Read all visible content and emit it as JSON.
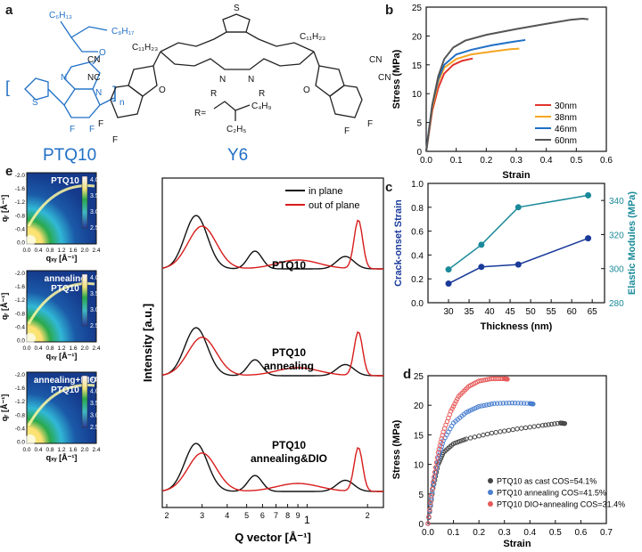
{
  "panel_labels": {
    "a": "a",
    "b": "b",
    "c": "c",
    "d": "d",
    "e": "e"
  },
  "molecules": {
    "ptq10": {
      "name": "PTQ10",
      "atoms": {
        "c6h13": "C₆H₁₃",
        "c8h17": "C₈H₁₇",
        "o": "O",
        "n1": "N",
        "n2": "N",
        "s": "S",
        "f1": "F",
        "f2": "F",
        "n_sub": "n"
      }
    },
    "y6": {
      "name": "Y6",
      "atoms": {
        "c11h23_left": "C₁₁H₂₃",
        "c11h23_right": "C₁₁H₂₃",
        "r_label": "R=",
        "c4h9": "C₄H₉",
        "c2h5": "C₂H₅",
        "n_left": "N",
        "n_right": "N",
        "r_left": "R",
        "r_right": "R",
        "cn": "CN",
        "nc": "NC",
        "o": "O",
        "f": "F",
        "s": "S"
      }
    }
  },
  "colors": {
    "blue": "#1f6fc5",
    "teal": "#1a8a9a",
    "navy": "#1a3a9a",
    "red": "#e0342c",
    "orange": "#f5a623",
    "black": "#111111",
    "gray": "#555555"
  },
  "chart_data": [
    {
      "id": "b",
      "type": "line",
      "xlabel": "Strain",
      "ylabel": "Stress (MPa)",
      "xlim": [
        0.0,
        0.6
      ],
      "ylim": [
        0,
        25
      ],
      "xticks": [
        "0.0",
        "0.1",
        "0.2",
        "0.3",
        "0.4",
        "0.5",
        "0.6"
      ],
      "yticks": [
        "0",
        "5",
        "10",
        "15",
        "20",
        "25"
      ],
      "legend": "bottom-right",
      "series": [
        {
          "name": "30nm",
          "color": "#e0342c",
          "points": [
            [
              0,
              0
            ],
            [
              0.02,
              7
            ],
            [
              0.04,
              11
            ],
            [
              0.06,
              13.5
            ],
            [
              0.09,
              15
            ],
            [
              0.12,
              15.7
            ],
            [
              0.155,
              16.1
            ]
          ]
        },
        {
          "name": "38nm",
          "color": "#f5a623",
          "points": [
            [
              0,
              0
            ],
            [
              0.02,
              7.5
            ],
            [
              0.04,
              12
            ],
            [
              0.06,
              14.5
            ],
            [
              0.1,
              16
            ],
            [
              0.15,
              16.8
            ],
            [
              0.22,
              17.3
            ],
            [
              0.28,
              17.7
            ],
            [
              0.31,
              17.8
            ]
          ]
        },
        {
          "name": "46nm",
          "color": "#1f6fc5",
          "points": [
            [
              0,
              0
            ],
            [
              0.02,
              8
            ],
            [
              0.04,
              12.5
            ],
            [
              0.06,
              15
            ],
            [
              0.1,
              16.8
            ],
            [
              0.15,
              17.6
            ],
            [
              0.22,
              18.4
            ],
            [
              0.29,
              19.0
            ],
            [
              0.33,
              19.3
            ]
          ]
        },
        {
          "name": "60nm",
          "color": "#555555",
          "points": [
            [
              0,
              0
            ],
            [
              0.02,
              8
            ],
            [
              0.04,
              13
            ],
            [
              0.06,
              16
            ],
            [
              0.09,
              18
            ],
            [
              0.13,
              19.2
            ],
            [
              0.2,
              20.2
            ],
            [
              0.3,
              21.2
            ],
            [
              0.4,
              22.1
            ],
            [
              0.48,
              22.8
            ],
            [
              0.52,
              23.0
            ],
            [
              0.54,
              22.9
            ]
          ]
        }
      ]
    },
    {
      "id": "c",
      "type": "line",
      "xlabel": "Thickness (nm)",
      "ylabel_left": "Crack-onset Strain",
      "ylabel_right": "Elastic Modules (MPa)",
      "xlim": [
        25,
        68
      ],
      "ylim_left": [
        0.0,
        1.0
      ],
      "ylim_right": [
        280,
        350
      ],
      "xticks": [
        "30",
        "35",
        "40",
        "45",
        "50",
        "55",
        "60",
        "65"
      ],
      "yticks_left": [
        "0.0",
        "0.2",
        "0.4",
        "0.6",
        "0.8",
        "1.0"
      ],
      "yticks_right": [
        "280",
        "300",
        "320",
        "340"
      ],
      "series": [
        {
          "name": "Crack-onset Strain",
          "axis": "left",
          "color": "#1a3a9a",
          "x": [
            30,
            38,
            47,
            64
          ],
          "y": [
            0.16,
            0.3,
            0.32,
            0.54
          ]
        },
        {
          "name": "Elastic Modules",
          "axis": "right",
          "color": "#1a8a9a",
          "x": [
            30,
            38,
            47,
            64
          ],
          "y": [
            299.5,
            314,
            336,
            343
          ]
        }
      ]
    },
    {
      "id": "d",
      "type": "scatter",
      "xlabel": "Strain",
      "ylabel": "Stress (MPa)",
      "xlim": [
        0.0,
        0.7
      ],
      "ylim": [
        0,
        25
      ],
      "xticks": [
        "0.0",
        "0.1",
        "0.2",
        "0.3",
        "0.4",
        "0.5",
        "0.6",
        "0.7"
      ],
      "yticks": [
        "0",
        "5",
        "10",
        "15",
        "20",
        "25"
      ],
      "legend": "bottom-right",
      "series": [
        {
          "name": "PTQ10 as cast COS=54.1%",
          "color": "#444444",
          "curve": [
            [
              0,
              0
            ],
            [
              0.02,
              6
            ],
            [
              0.04,
              10
            ],
            [
              0.06,
              12
            ],
            [
              0.1,
              13.5
            ],
            [
              0.15,
              14.3
            ],
            [
              0.25,
              15.3
            ],
            [
              0.35,
              16.0
            ],
            [
              0.45,
              16.6
            ],
            [
              0.52,
              17.0
            ],
            [
              0.54,
              16.9
            ]
          ]
        },
        {
          "name": "PTQ10 annealing   COS=41.5%",
          "color": "#4a7fd0",
          "curve": [
            [
              0,
              0
            ],
            [
              0.02,
              6.5
            ],
            [
              0.04,
              11
            ],
            [
              0.06,
              14
            ],
            [
              0.1,
              17
            ],
            [
              0.15,
              18.8
            ],
            [
              0.2,
              19.8
            ],
            [
              0.26,
              20.3
            ],
            [
              0.33,
              20.4
            ],
            [
              0.4,
              20.3
            ],
            [
              0.415,
              20.2
            ]
          ]
        },
        {
          "name": "PTQ10 DIO+annealing COS=31.4%",
          "color": "#e85a5a",
          "curve": [
            [
              0,
              0
            ],
            [
              0.02,
              7
            ],
            [
              0.04,
              12
            ],
            [
              0.06,
              15.5
            ],
            [
              0.09,
              19
            ],
            [
              0.12,
              21.5
            ],
            [
              0.16,
              23.2
            ],
            [
              0.2,
              24.1
            ],
            [
              0.25,
              24.5
            ],
            [
              0.3,
              24.5
            ],
            [
              0.314,
              24.4
            ]
          ]
        }
      ]
    },
    {
      "id": "e-profiles",
      "type": "line",
      "xlabel": "Q vector [Å⁻¹]",
      "ylabel": "Intensity [a.u.]",
      "xscale": "log",
      "xlim": [
        0.19,
        2.4
      ],
      "xticks": [
        "2",
        "3",
        "4",
        "5",
        "6",
        "7",
        "8",
        "9",
        "1",
        "2"
      ],
      "legend": "top-right",
      "series_names": [
        "in plane",
        "out of plane"
      ],
      "series_colors": [
        "#111111",
        "#d81c1c"
      ],
      "annotations": [
        "PTQ10",
        "PTQ10\nannealing",
        "PTQ10\nannealing&DIO"
      ]
    },
    {
      "id": "e-giwaxs",
      "type": "heatmap",
      "xlabel": "qₓᵧ [Å⁻¹]",
      "ylabel": "qᵣ [Å⁻¹]",
      "xticks": [
        "0.0",
        "0.4",
        "0.8",
        "1.2",
        "1.6",
        "2.0",
        "2.4"
      ],
      "yticks": [
        "-2.0",
        "-1.6",
        "-1.2",
        "-0.8",
        "-0.4",
        "0.0"
      ],
      "panels": [
        {
          "title": "PTQ10",
          "colorbar": [
            "4.0",
            "3.5",
            "3.0",
            "2.5"
          ]
        },
        {
          "title": "annealing\nPTQ10",
          "colorbar": [
            "4.0",
            "3.5",
            "3.0",
            "2.5"
          ]
        },
        {
          "title": "annealing+DIO\nPTQ10",
          "colorbar": [
            "4.5",
            "4.0",
            "3.5",
            "3.0",
            "2.5"
          ]
        }
      ]
    }
  ]
}
